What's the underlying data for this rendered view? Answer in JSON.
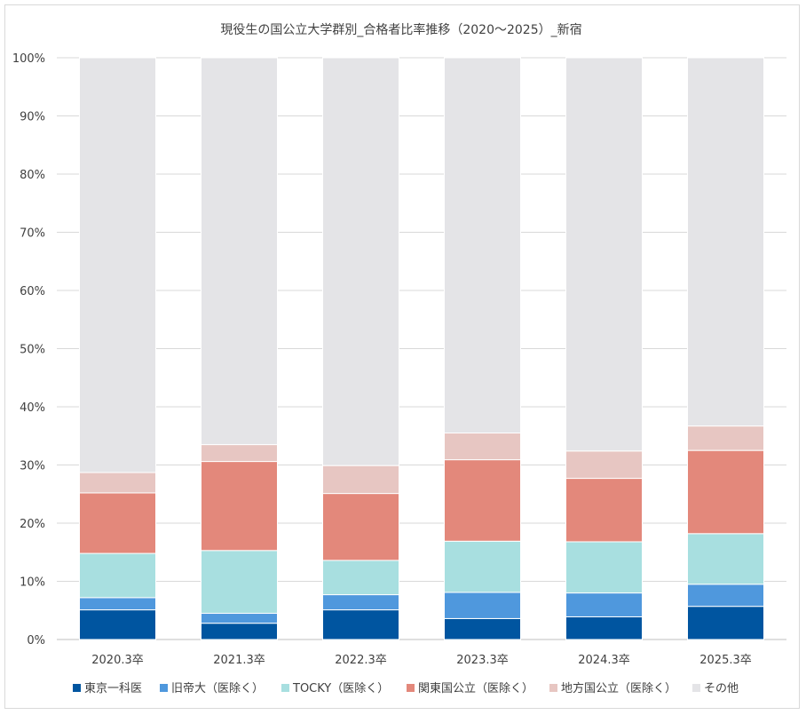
{
  "chart_data": {
    "type": "bar",
    "stacked": true,
    "title": "現役生の国公立大学群別_合格者比率推移（2020～2025）_新宿",
    "categories": [
      "2020.3卒",
      "2021.3卒",
      "2022.3卒",
      "2023.3卒",
      "2024.3卒",
      "2025.3卒"
    ],
    "ylim": [
      0,
      100
    ],
    "yticks": [
      "0%",
      "10%",
      "20%",
      "30%",
      "40%",
      "50%",
      "60%",
      "70%",
      "80%",
      "90%",
      "100%"
    ],
    "grid": true,
    "legend": "bottom",
    "series": [
      {
        "name": "東京一科医",
        "color": "#0055A0",
        "values": [
          5.1,
          2.8,
          5.1,
          3.6,
          3.9,
          5.7
        ]
      },
      {
        "name": "旧帝大（医除く）",
        "color": "#4F98DD",
        "values": [
          2.1,
          1.7,
          2.6,
          4.5,
          4.1,
          3.8
        ]
      },
      {
        "name": "TOCKY（医除く）",
        "color": "#A8DFE0",
        "values": [
          7.6,
          10.8,
          5.9,
          8.8,
          8.8,
          8.7
        ]
      },
      {
        "name": "関東国公立（医除く）",
        "color": "#E3887B",
        "values": [
          10.4,
          15.3,
          11.5,
          14.0,
          10.9,
          14.3
        ]
      },
      {
        "name": "地方国公立（医除く）",
        "color": "#E7C6C2",
        "values": [
          3.5,
          2.9,
          4.8,
          4.6,
          4.7,
          4.2
        ]
      },
      {
        "name": "その他",
        "color": "#E4E4E7",
        "values": [
          71.3,
          66.5,
          70.1,
          64.5,
          67.6,
          63.3
        ]
      }
    ]
  }
}
